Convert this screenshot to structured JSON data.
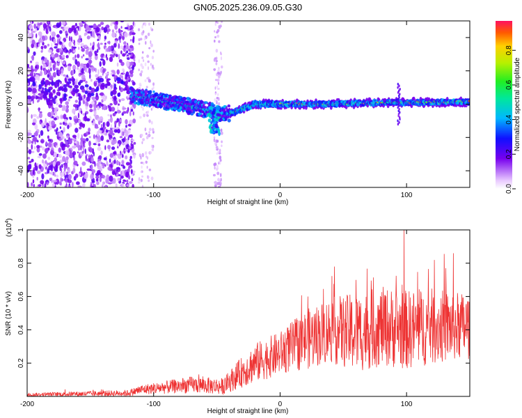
{
  "title": "GN05.2025.236.09.05.G30",
  "chart_data": [
    {
      "type": "heatmap",
      "xlabel": "Height of straight line (km)",
      "ylabel": "Frequency (Hz)",
      "xlim": [
        -200,
        150
      ],
      "ylim": [
        -50,
        50
      ],
      "xticks": [
        -200,
        -100,
        0,
        100
      ],
      "yticks": [
        -40,
        -20,
        0,
        20,
        40
      ],
      "colorbar": {
        "label": "Normalized spectral amplitude",
        "range": [
          0,
          0.97
        ],
        "ticks": [
          0.0,
          0.2,
          0.4,
          0.6,
          0.8
        ],
        "tick_labels": [
          "0.0",
          "0.2",
          "0.4",
          "0.6",
          "0.8"
        ],
        "colormap": "rainbow"
      },
      "ridge": {
        "description": "dominant frequency trace",
        "x": [
          -115,
          -100,
          -80,
          -60,
          -45,
          -38,
          -20,
          0,
          20,
          40,
          60,
          80,
          95,
          100,
          120,
          150
        ],
        "freq": [
          5,
          3,
          0,
          -3,
          -6,
          -5,
          0,
          0,
          0,
          0,
          0.5,
          1,
          1,
          1,
          1,
          1.5
        ]
      }
    },
    {
      "type": "line",
      "xlabel": "Height of straight line (km)",
      "ylabel": "SNR (10 * v/v)",
      "yscale_label": "(x10",
      "yscale_exp": "4",
      "xlim": [
        -200,
        150
      ],
      "ylim": [
        0,
        1.0
      ],
      "xticks": [
        -200,
        -100,
        0,
        100
      ],
      "yticks": [
        0.2,
        0.4,
        0.6,
        0.8,
        1.0
      ],
      "color": "#ee3333",
      "envelope": {
        "x": [
          -200,
          -120,
          -110,
          -70,
          -45,
          -35,
          -20,
          0,
          20,
          40,
          60,
          80,
          100,
          120,
          150
        ],
        "mean": [
          0.01,
          0.02,
          0.04,
          0.07,
          0.06,
          0.12,
          0.2,
          0.26,
          0.34,
          0.4,
          0.38,
          0.42,
          0.4,
          0.42,
          0.42
        ],
        "amplitude": [
          0.01,
          0.02,
          0.03,
          0.05,
          0.05,
          0.08,
          0.12,
          0.13,
          0.18,
          0.2,
          0.24,
          0.24,
          0.24,
          0.23,
          0.2
        ]
      },
      "peaks": [
        {
          "x": 98,
          "y": 1.0
        },
        {
          "x": 137,
          "y": 0.86
        },
        {
          "x": 43,
          "y": 0.78
        },
        {
          "x": 131,
          "y": 0.77
        },
        {
          "x": 22,
          "y": 0.6
        },
        {
          "x": 60,
          "y": 0.7
        }
      ]
    }
  ]
}
